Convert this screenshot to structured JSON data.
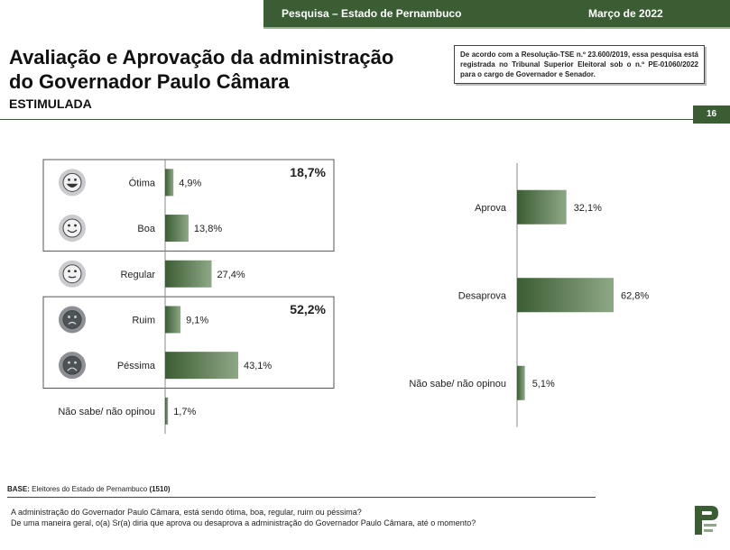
{
  "header": {
    "survey": "Pesquisa – Estado de Pernambuco",
    "date": "Março de 2022"
  },
  "title_line1": "Avaliação e Aprovação da administração",
  "title_line2": "do Governador Paulo Câmara",
  "subtitle": "ESTIMULADA",
  "note": "De acordo com a Resolução-TSE n.º 23.600/2019, essa pesquisa está registrada no Tribunal Superior Eleitoral sob o n.º PE-01060/2022 para o cargo de Governador e Senador.",
  "page_number": "16",
  "colors": {
    "bar_dark": "#3b5d34",
    "bar_light": "#8ea885",
    "header_green": "#3b5d34"
  },
  "chart_data": [
    {
      "type": "bar",
      "orientation": "horizontal",
      "categories": [
        "Ótima",
        "Boa",
        "Regular",
        "Ruim",
        "Péssima",
        "Não sabe/ não opinou"
      ],
      "values": [
        4.9,
        13.8,
        27.4,
        9.1,
        43.1,
        1.7
      ],
      "value_labels": [
        "4,9%",
        "13,8%",
        "27,4%",
        "9,1%",
        "43,1%",
        "1,7%"
      ],
      "icons": [
        "very-happy-face-icon",
        "happy-face-icon",
        "neutral-face-icon",
        "sad-face-icon",
        "very-sad-face-icon",
        ""
      ],
      "groups": [
        {
          "members": [
            "Ótima",
            "Boa"
          ],
          "total_label": "18,7%"
        },
        {
          "members": [
            "Ruim",
            "Péssima"
          ],
          "total_label": "52,2%"
        }
      ],
      "title": "",
      "xlabel": "",
      "ylabel": ""
    },
    {
      "type": "bar",
      "orientation": "horizontal",
      "categories": [
        "Aprova",
        "Desaprova",
        "Não sabe/ não opinou"
      ],
      "values": [
        32.1,
        62.8,
        5.1
      ],
      "value_labels": [
        "32,1%",
        "62,8%",
        "5,1%"
      ],
      "title": "",
      "xlabel": "",
      "ylabel": ""
    }
  ],
  "footer": {
    "base_label": "BASE:",
    "base_text": "Eleitores do Estado de Pernambuco",
    "base_count": "(1510)",
    "question1": "A administração do Governador Paulo Câmara, está sendo ótima, boa, regular, ruim ou péssima?",
    "question2": "De uma maneira geral, o(a) Sr(a) diria que aprova ou desaprova a administração do Governador Paulo Câmara, até o momento?"
  }
}
